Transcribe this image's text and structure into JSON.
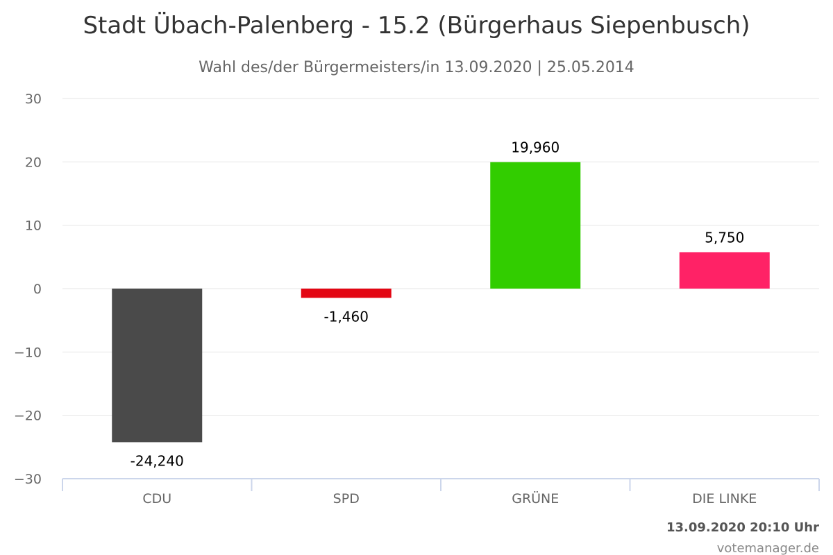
{
  "chart_data": {
    "type": "bar",
    "title": "Stadt Übach-Palenberg - 15.2 (Bürgerhaus Siepenbusch)",
    "subtitle": "Wahl des/der Bürgermeisters/in 13.09.2020 | 25.05.2014",
    "categories": [
      "CDU",
      "SPD",
      "GRÜNE",
      "DIE LINKE"
    ],
    "values": [
      -24.24,
      -1.46,
      19.96,
      5.75
    ],
    "data_labels": [
      "-24,240",
      "-1,460",
      "19,960",
      "5,750"
    ],
    "colors": [
      "#4a4a4a",
      "#e30613",
      "#32cd00",
      "#ff2266"
    ],
    "ylim": [
      -30,
      30
    ],
    "y_ticks": [
      30,
      20,
      10,
      0,
      -10,
      -20,
      -30
    ],
    "y_tick_labels": [
      "30",
      "20",
      "10",
      "0",
      "−10",
      "−20",
      "−30"
    ],
    "grid": true,
    "xlabel": "",
    "ylabel": ""
  },
  "footer": {
    "timestamp": "13.09.2020 20:10 Uhr",
    "credit": "votemanager.de"
  }
}
